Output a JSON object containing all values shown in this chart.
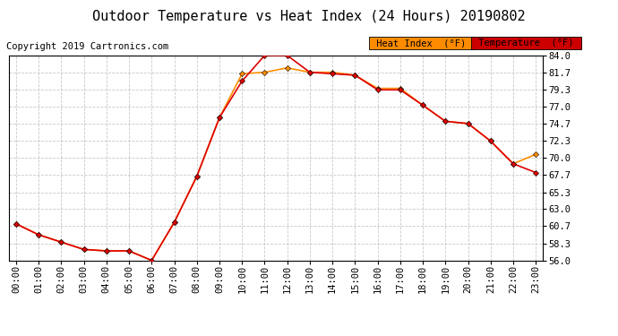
{
  "title": "Outdoor Temperature vs Heat Index (24 Hours) 20190802",
  "copyright": "Copyright 2019 Cartronics.com",
  "x_labels": [
    "00:00",
    "01:00",
    "02:00",
    "03:00",
    "04:00",
    "05:00",
    "06:00",
    "07:00",
    "08:00",
    "09:00",
    "10:00",
    "11:00",
    "12:00",
    "13:00",
    "14:00",
    "15:00",
    "16:00",
    "17:00",
    "18:00",
    "19:00",
    "20:00",
    "21:00",
    "22:00",
    "23:00"
  ],
  "temperature": [
    61.0,
    59.5,
    58.5,
    57.5,
    57.3,
    57.3,
    56.0,
    61.2,
    67.5,
    75.5,
    80.5,
    84.0,
    84.0,
    81.7,
    81.5,
    81.3,
    79.3,
    79.3,
    77.2,
    75.0,
    74.7,
    72.3,
    69.2,
    68.0
  ],
  "heat_index": [
    61.0,
    59.5,
    58.5,
    57.5,
    57.3,
    57.3,
    56.0,
    61.2,
    67.5,
    75.5,
    81.5,
    81.7,
    82.3,
    81.7,
    81.7,
    81.3,
    79.5,
    79.5,
    77.2,
    75.0,
    74.7,
    72.3,
    69.2,
    70.5
  ],
  "temp_color": "#dd0000",
  "heat_color": "#ff8c00",
  "ylim_min": 56.0,
  "ylim_max": 84.0,
  "yticks": [
    56.0,
    58.3,
    60.7,
    63.0,
    65.3,
    67.7,
    70.0,
    72.3,
    74.7,
    77.0,
    79.3,
    81.7,
    84.0
  ],
  "background_color": "#ffffff",
  "grid_color": "#bbbbbb",
  "legend_heat_bg": "#ff8c00",
  "legend_temp_bg": "#cc0000",
  "title_fontsize": 11,
  "copyright_fontsize": 7.5,
  "tick_fontsize": 7.5
}
